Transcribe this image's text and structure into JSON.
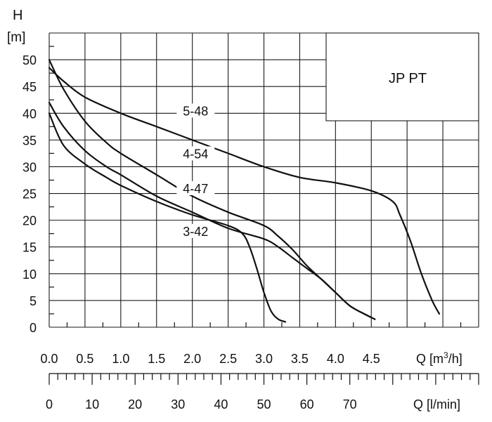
{
  "chart_data": {
    "type": "line",
    "title": "JP PT",
    "ylabel": "H",
    "yunit": "[m]",
    "xlabel": "Q [m³/h]",
    "xlabel_parts": {
      "prefix": "Q [m",
      "sup": "3",
      "suffix": "/h]"
    },
    "xlabel2": "Q [l/min]",
    "xlim": [
      0,
      6
    ],
    "ylim": [
      0,
      55
    ],
    "yticks": [
      "0",
      "5",
      "10",
      "15",
      "20",
      "25",
      "30",
      "35",
      "40",
      "45",
      "50"
    ],
    "xticks": [
      "0.0",
      "0.5",
      "1.0",
      "1.5",
      "2.0",
      "2.5",
      "3.0",
      "3.5",
      "4.0",
      "4.5"
    ],
    "x2ticks": [
      "0",
      "10",
      "20",
      "30",
      "40",
      "50",
      "60",
      "70"
    ],
    "series": [
      {
        "name": "5-48",
        "x": [
          0.0,
          0.2,
          0.5,
          1.0,
          1.5,
          2.0,
          2.5,
          3.0,
          3.5,
          4.0,
          4.5,
          4.8,
          4.9,
          5.05,
          5.2,
          5.35,
          5.45
        ],
        "y": [
          48.5,
          46,
          43,
          40,
          37.5,
          35,
          32.5,
          30,
          28,
          27,
          25.5,
          23.5,
          21,
          16,
          10,
          5,
          2.5
        ]
      },
      {
        "name": "4-54",
        "x": [
          0.0,
          0.2,
          0.5,
          0.8,
          1.0,
          1.5,
          2.0,
          2.5,
          3.0,
          3.2,
          3.4,
          3.6,
          3.8,
          4.0,
          4.2,
          4.4,
          4.55
        ],
        "y": [
          50,
          44.5,
          38.5,
          34.5,
          32.5,
          28.5,
          24.5,
          21.5,
          19,
          17,
          14.5,
          11.5,
          9,
          6.5,
          4,
          2.5,
          1.5
        ]
      },
      {
        "name": "4-47",
        "x": [
          0.0,
          0.2,
          0.5,
          0.8,
          1.0,
          1.5,
          2.0,
          2.5,
          3.0,
          3.2,
          3.4,
          3.6,
          3.8,
          4.0,
          4.2,
          4.4,
          4.55
        ],
        "y": [
          42,
          37.5,
          33,
          30,
          28.5,
          24.5,
          21.5,
          18.5,
          16.5,
          15,
          13,
          11,
          9,
          6.5,
          4,
          2.5,
          1.5
        ]
      },
      {
        "name": "3-42",
        "x": [
          0.0,
          0.2,
          0.5,
          0.8,
          1.0,
          1.5,
          2.0,
          2.5,
          2.7,
          2.8,
          2.9,
          3.0,
          3.1,
          3.2,
          3.3
        ],
        "y": [
          40,
          34,
          30.5,
          28,
          26.5,
          23.5,
          21,
          19,
          17.5,
          15,
          11,
          6.5,
          3,
          1.5,
          1
        ]
      }
    ]
  }
}
